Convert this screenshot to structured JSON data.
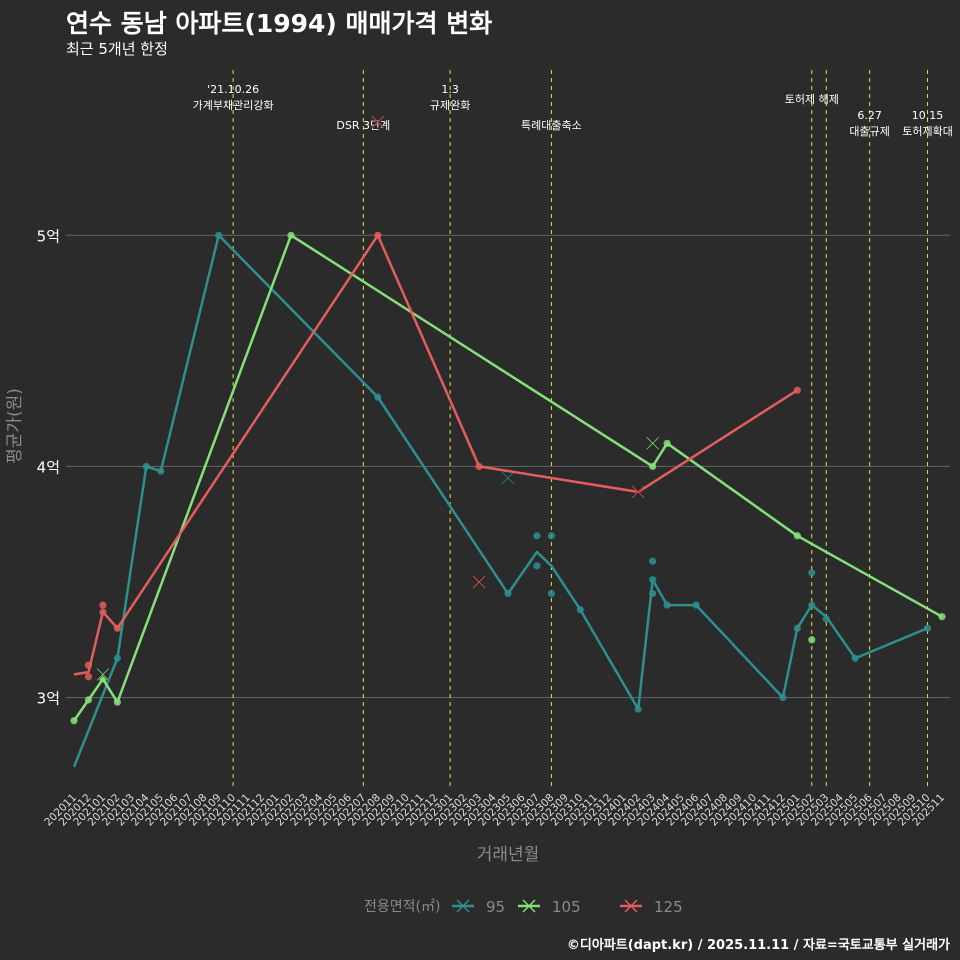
{
  "chart_data": {
    "type": "line",
    "title": "연수 동남 아파트(1994) 매매가격 변화",
    "subtitle": "최근 5개년 한정",
    "xlabel": "거래년월",
    "ylabel": "평균가(원)",
    "caption": "©디아파트(dapt.kr) / 2025.11.11 / 자료=국토교통부 실거래가",
    "legend_title": "전용면적(㎡)",
    "legend_position": "bottom",
    "ylim": [
      2.6,
      5.75
    ],
    "yticks": [
      {
        "v": 3,
        "label": "3억"
      },
      {
        "v": 4,
        "label": "4억"
      },
      {
        "v": 5,
        "label": "5억"
      }
    ],
    "x_categories": [
      "202011",
      "202012",
      "202101",
      "202102",
      "202103",
      "202104",
      "202105",
      "202106",
      "202107",
      "202108",
      "202109",
      "202110",
      "202111",
      "202112",
      "202201",
      "202202",
      "202203",
      "202204",
      "202205",
      "202206",
      "202207",
      "202208",
      "202209",
      "202210",
      "202211",
      "202212",
      "202301",
      "202302",
      "202303",
      "202304",
      "202305",
      "202306",
      "202307",
      "202308",
      "202309",
      "202310",
      "202311",
      "202312",
      "202401",
      "202402",
      "202403",
      "202404",
      "202405",
      "202406",
      "202407",
      "202408",
      "202409",
      "202410",
      "202411",
      "202412",
      "202501",
      "202502",
      "202503",
      "202504",
      "202505",
      "202506",
      "202507",
      "202508",
      "202509",
      "202510",
      "202511"
    ],
    "events": [
      {
        "month": "202110",
        "label": "'21.10.26\n가계부채관리강화",
        "row": 1
      },
      {
        "month": "202207",
        "label": "DSR 3단계",
        "row": 2
      },
      {
        "month": "202301",
        "label": "1.3\n규제완화",
        "row": 1
      },
      {
        "month": "202308",
        "label": "특례대출축소",
        "row": 2
      },
      {
        "month": "202502",
        "label": "토허제 해제",
        "row": 0
      },
      {
        "month": "202503",
        "label": "",
        "row": 0
      },
      {
        "month": "202506",
        "label": "6.27\n대출규제",
        "row": 2
      },
      {
        "month": "202510",
        "label": "10.15\n토허제확대",
        "row": 2
      }
    ],
    "series": [
      {
        "name": "95",
        "color": "#2e8f8f",
        "line": [
          [
            "202011",
            2.7
          ],
          [
            "202102",
            3.17
          ],
          [
            "202104",
            4.0
          ],
          [
            "202105",
            3.98
          ],
          [
            "202109",
            5.0
          ],
          [
            "202208",
            4.3
          ],
          [
            "202305",
            3.45
          ],
          [
            "202307",
            3.63
          ],
          [
            "202308",
            3.57
          ],
          [
            "202310",
            3.38
          ],
          [
            "202402",
            2.95
          ],
          [
            "202403",
            3.51
          ],
          [
            "202404",
            3.4
          ],
          [
            "202406",
            3.4
          ],
          [
            "202412",
            3.0
          ],
          [
            "202501",
            3.3
          ],
          [
            "202502",
            3.4
          ],
          [
            "202503",
            3.35
          ],
          [
            "202505",
            3.17
          ],
          [
            "202510",
            3.3
          ]
        ],
        "points": [
          [
            "202102",
            3.17
          ],
          [
            "202104",
            4.0
          ],
          [
            "202105",
            3.98
          ],
          [
            "202109",
            5.0
          ],
          [
            "202208",
            4.3
          ],
          [
            "202305",
            3.45
          ],
          [
            "202307",
            3.7
          ],
          [
            "202307",
            3.57
          ],
          [
            "202308",
            3.7
          ],
          [
            "202308",
            3.45
          ],
          [
            "202310",
            3.38
          ],
          [
            "202402",
            2.95
          ],
          [
            "202403",
            3.59
          ],
          [
            "202403",
            3.51
          ],
          [
            "202403",
            3.45
          ],
          [
            "202404",
            3.4
          ],
          [
            "202406",
            3.4
          ],
          [
            "202412",
            3.0
          ],
          [
            "202501",
            3.3
          ],
          [
            "202502",
            3.54
          ],
          [
            "202502",
            3.4
          ],
          [
            "202503",
            3.34
          ],
          [
            "202505",
            3.17
          ],
          [
            "202510",
            3.3
          ]
        ],
        "cancels": [
          [
            "202305",
            3.95
          ]
        ]
      },
      {
        "name": "105",
        "color": "#86e07a",
        "line": [
          [
            "202011",
            2.9
          ],
          [
            "202012",
            2.99
          ],
          [
            "202101",
            3.08
          ],
          [
            "202102",
            2.98
          ],
          [
            "202202",
            5.0
          ],
          [
            "202403",
            4.0
          ],
          [
            "202404",
            4.1
          ],
          [
            "202501",
            3.7
          ],
          [
            "202511",
            3.35
          ]
        ],
        "points": [
          [
            "202011",
            2.9
          ],
          [
            "202012",
            2.99
          ],
          [
            "202101",
            3.08
          ],
          [
            "202102",
            2.98
          ],
          [
            "202202",
            5.0
          ],
          [
            "202403",
            4.0
          ],
          [
            "202404",
            4.1
          ],
          [
            "202501",
            3.7
          ],
          [
            "202502",
            3.25
          ],
          [
            "202511",
            3.35
          ]
        ],
        "cancels": [
          [
            "202101",
            3.1
          ],
          [
            "202403",
            4.1
          ]
        ]
      },
      {
        "name": "125",
        "color": "#e45d5d",
        "line": [
          [
            "202011",
            3.1
          ],
          [
            "202012",
            3.11
          ],
          [
            "202101",
            3.37
          ],
          [
            "202102",
            3.3
          ],
          [
            "202208",
            5.0
          ],
          [
            "202303",
            4.0
          ],
          [
            "202402",
            3.89
          ],
          [
            "202501",
            4.33
          ]
        ],
        "points": [
          [
            "202012",
            3.09
          ],
          [
            "202012",
            3.14
          ],
          [
            "202101",
            3.4
          ],
          [
            "202101",
            3.37
          ],
          [
            "202102",
            3.3
          ],
          [
            "202208",
            5.0
          ],
          [
            "202303",
            4.0
          ],
          [
            "202501",
            4.33
          ]
        ],
        "cancels": [
          [
            "202303",
            3.5
          ],
          [
            "202402",
            3.89
          ],
          [
            "202208",
            5.49
          ]
        ]
      }
    ]
  }
}
